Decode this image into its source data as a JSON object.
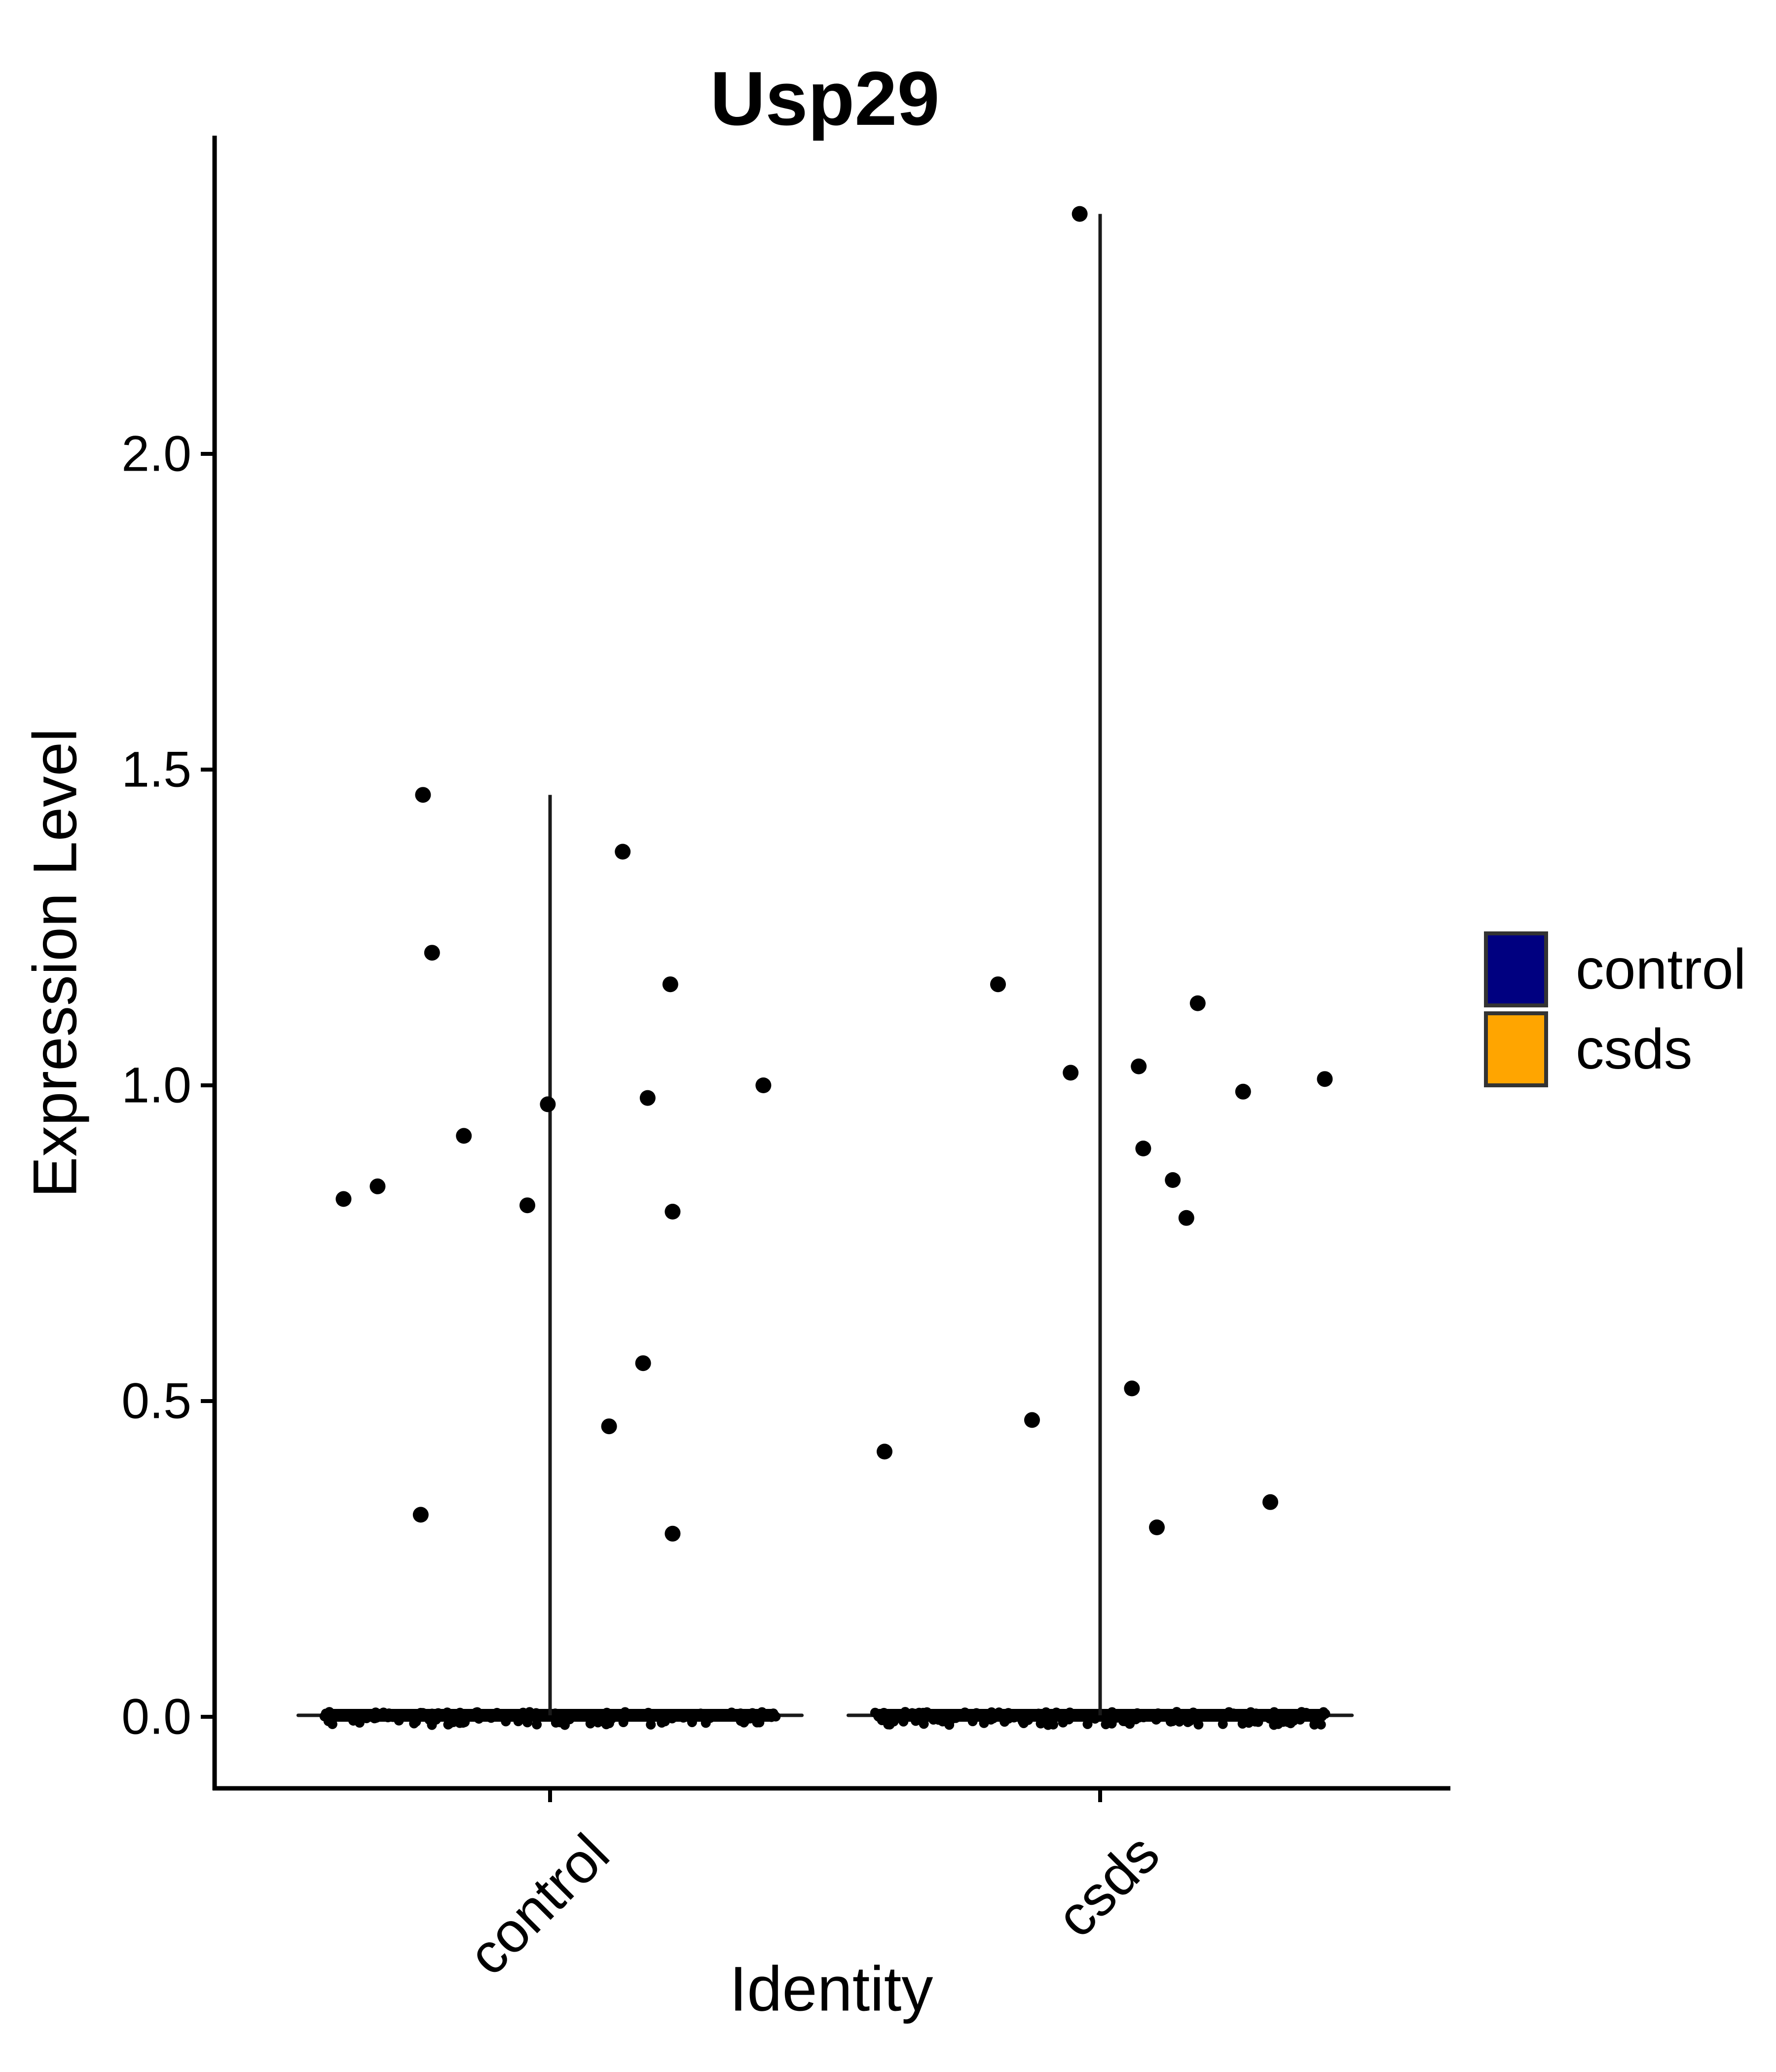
{
  "chart_data": {
    "type": "scatter",
    "variant": "violin-jitter expression plot (two collapsed violins with jittered points)",
    "title": "Usp29",
    "xlabel": "Identity",
    "ylabel": "Expression Level",
    "categories": [
      "control",
      "csds"
    ],
    "yticks": [
      0.0,
      0.5,
      1.0,
      1.5,
      2.0
    ],
    "ylim": [
      -0.11,
      2.5
    ],
    "grid": "off",
    "legend_position": "right-center",
    "point_color": "#000000",
    "stem_color": "#1a1a1a",
    "axis_color": "#000000",
    "legend": [
      {
        "label": "control",
        "color": "#000080",
        "border": "#333333"
      },
      {
        "label": "csds",
        "color": "#FFA500",
        "border": "#333333"
      }
    ],
    "series": [
      {
        "name": "control",
        "points": [
          {
            "v": 1.46,
            "dx": -0.56
          },
          {
            "v": 1.37,
            "dx": 0.32
          },
          {
            "v": 1.21,
            "dx": -0.52
          },
          {
            "v": 1.16,
            "dx": 0.53
          },
          {
            "v": 1.0,
            "dx": 0.94
          },
          {
            "v": 0.98,
            "dx": 0.43
          },
          {
            "v": 0.97,
            "dx": -0.01
          },
          {
            "v": 0.92,
            "dx": -0.38
          },
          {
            "v": 0.84,
            "dx": -0.76
          },
          {
            "v": 0.82,
            "dx": -0.91
          },
          {
            "v": 0.81,
            "dx": -0.1
          },
          {
            "v": 0.8,
            "dx": 0.54
          },
          {
            "v": 0.56,
            "dx": 0.41
          },
          {
            "v": 0.46,
            "dx": 0.26
          },
          {
            "v": 0.32,
            "dx": -0.57
          },
          {
            "v": 0.29,
            "dx": 0.54
          }
        ],
        "zero_band": {
          "value": 0.0,
          "dot_count": 150
        }
      },
      {
        "name": "csds",
        "points": [
          {
            "v": 2.38,
            "dx": -0.09
          },
          {
            "v": 1.16,
            "dx": -0.45
          },
          {
            "v": 1.13,
            "dx": 0.43
          },
          {
            "v": 1.03,
            "dx": 0.17
          },
          {
            "v": 1.02,
            "dx": -0.13
          },
          {
            "v": 1.01,
            "dx": 0.99
          },
          {
            "v": 0.99,
            "dx": 0.63
          },
          {
            "v": 0.9,
            "dx": 0.19
          },
          {
            "v": 0.85,
            "dx": 0.32
          },
          {
            "v": 0.79,
            "dx": 0.38
          },
          {
            "v": 0.52,
            "dx": 0.14
          },
          {
            "v": 0.47,
            "dx": -0.3
          },
          {
            "v": 0.42,
            "dx": -0.95
          },
          {
            "v": 0.34,
            "dx": 0.75
          },
          {
            "v": 0.3,
            "dx": 0.25
          }
        ],
        "zero_band": {
          "value": 0.0,
          "dot_count": 170
        }
      }
    ]
  }
}
